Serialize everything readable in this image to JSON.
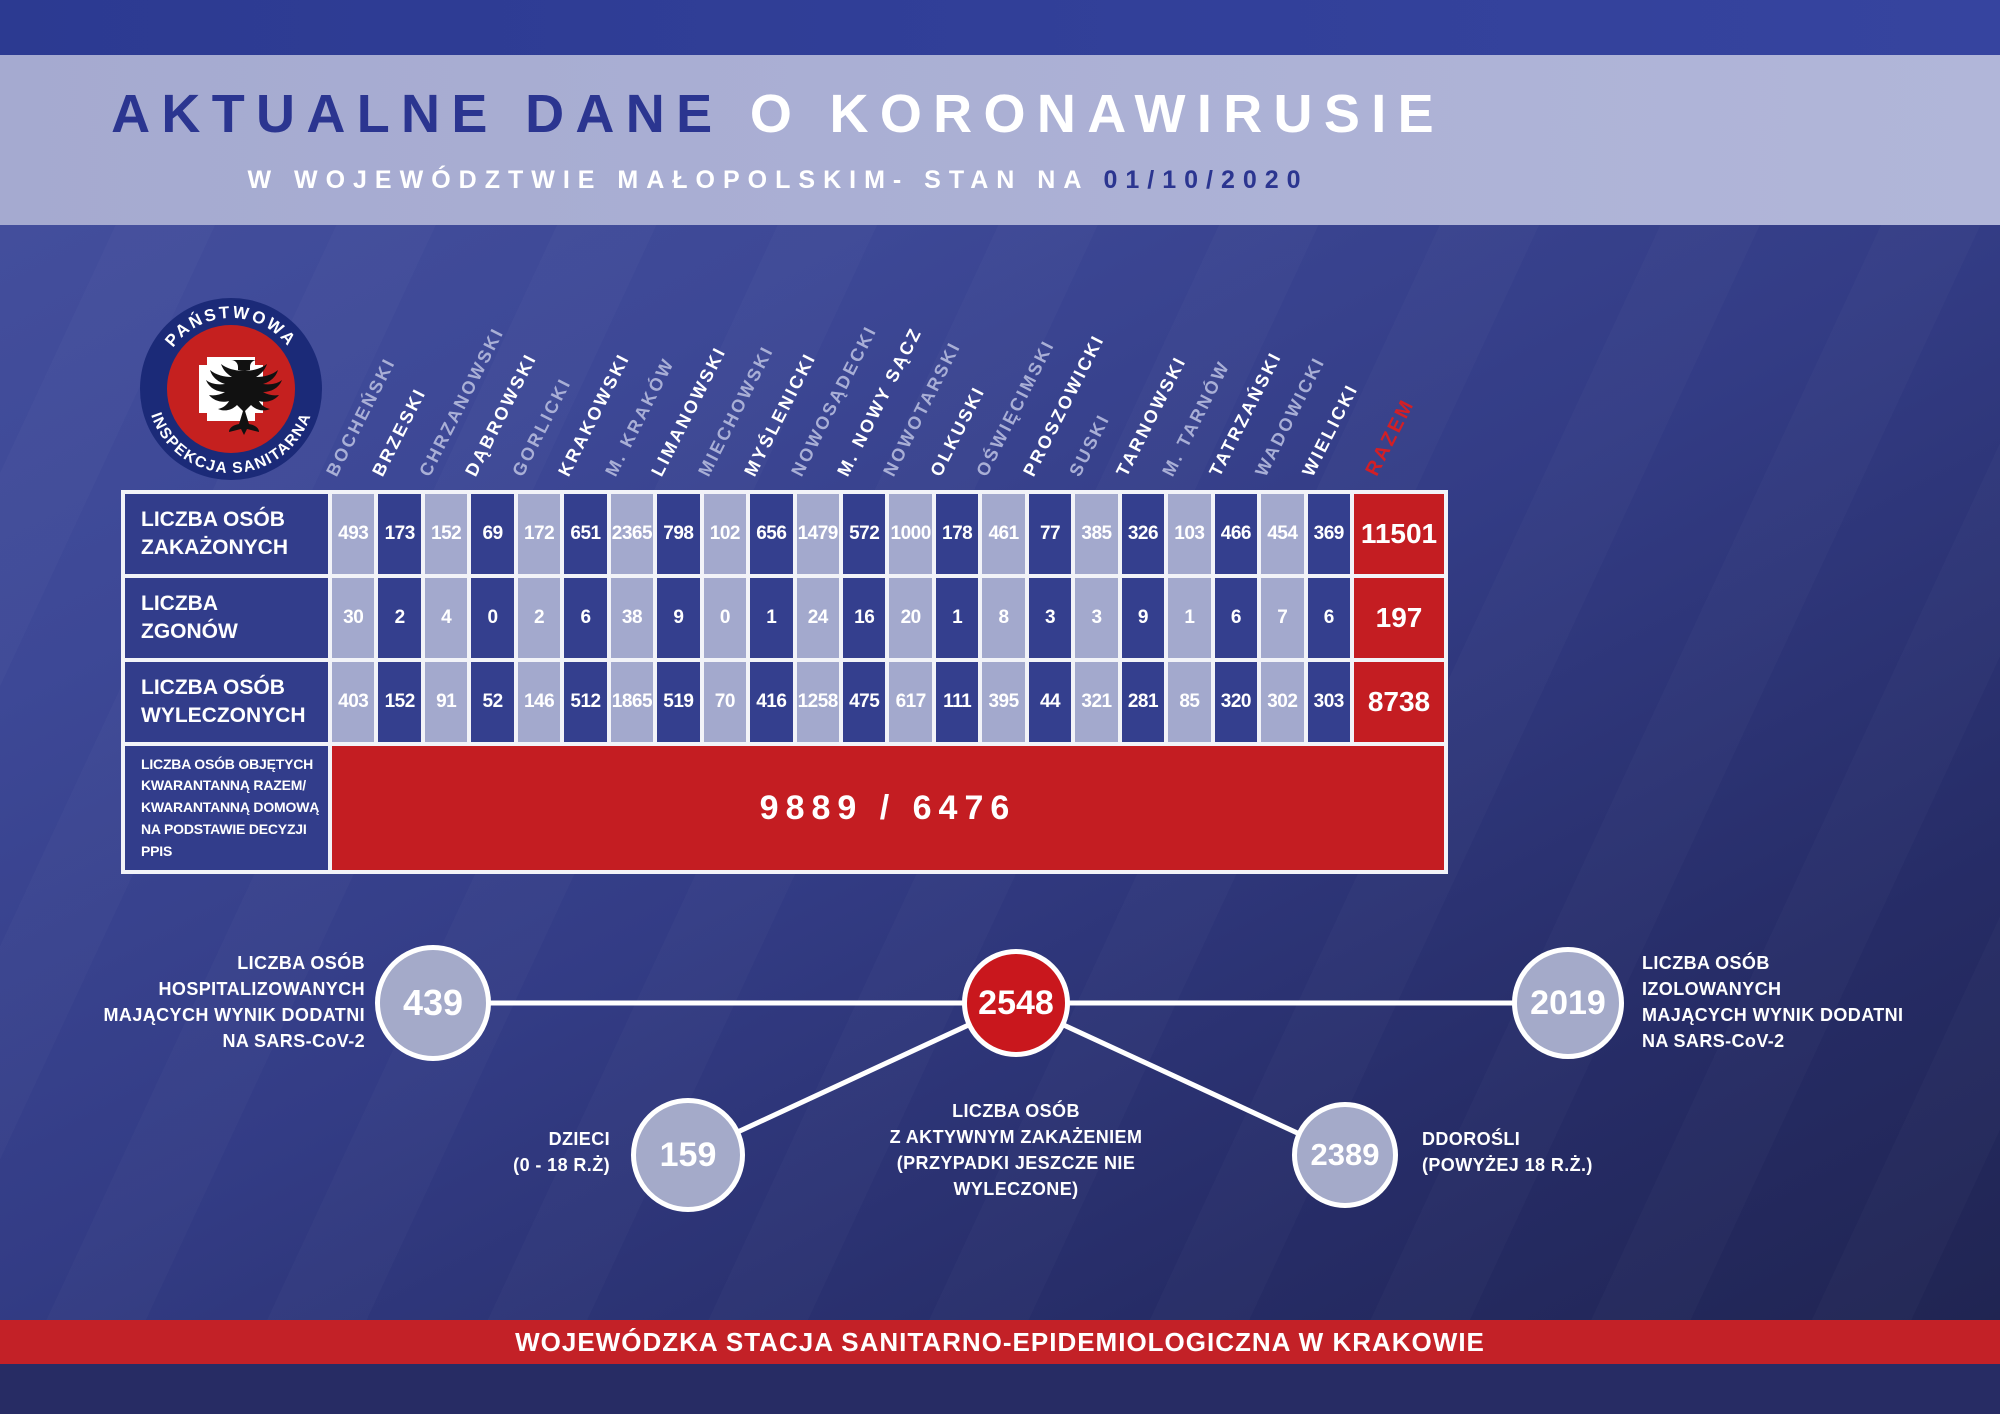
{
  "header": {
    "title_dark": "AKTUALNE DANE ",
    "title_light": "O KORONAWIRUSIE",
    "subtitle": "W WOJEWÓDZTWIE MAŁOPOLSKIM- STAN NA ",
    "date": "01/10/2020"
  },
  "logo": {
    "text_top": "PAŃSTWOWA",
    "text_bottom": "INSPEKCJA SANITARNA"
  },
  "colors": {
    "accent_red": "#c41d22",
    "navy_title": "#2b3590",
    "lavender": "#a5aad0",
    "cell_dark": "#343f8e",
    "background_top": "#46519f",
    "background_bottom": "#1f234e"
  },
  "chart_data": {
    "type": "table",
    "title": "AKTUALNE DANE O KORONAWIRUSIE W WOJEWÓDZTWIE MAŁOPOLSKIM - STAN NA 01/10/2020",
    "columns": [
      "BOCHEŃSKI",
      "BRZESKI",
      "CHRZANOWSKI",
      "DĄBROWSKI",
      "GORLICKI",
      "KRAKOWSKI",
      "M. KRAKÓW",
      "LIMANOWSKI",
      "MIECHOWSKI",
      "MYŚLENICKI",
      "NOWOSĄDECKI",
      "M. NOWY SĄCZ",
      "NOWOTARSKI",
      "OLKUSKI",
      "OŚWIĘCIMSKI",
      "PROSZOWICKI",
      "SUSKI",
      "TARNOWSKI",
      "M. TARNÓW",
      "TATRZAŃSKI",
      "WADOWICKI",
      "WIELICKI"
    ],
    "total_column": "RAZEM",
    "rows": [
      {
        "label": "LICZBA OSÓB\nZAKAŻONYCH",
        "values": [
          493,
          173,
          152,
          69,
          172,
          651,
          2365,
          798,
          102,
          656,
          1479,
          572,
          1000,
          178,
          461,
          77,
          385,
          326,
          103,
          466,
          454,
          369
        ],
        "total": 11501
      },
      {
        "label": "LICZBA\nZGONÓW",
        "values": [
          30,
          2,
          4,
          0,
          2,
          6,
          38,
          9,
          0,
          1,
          24,
          16,
          20,
          1,
          8,
          3,
          3,
          9,
          1,
          6,
          7,
          6
        ],
        "total": 197
      },
      {
        "label": "LICZBA OSÓB\nWYLECZONYCH",
        "values": [
          403,
          152,
          91,
          52,
          146,
          512,
          1865,
          519,
          70,
          416,
          1258,
          475,
          617,
          111,
          395,
          44,
          321,
          281,
          85,
          320,
          302,
          303
        ],
        "total": 8738
      }
    ],
    "quarantine_row": {
      "label": "LICZBA OSÓB OBJĘTYCH\nKWARANTANNĄ RAZEM/\nKWARANTANNĄ DOMOWĄ\nNA PODSTAWIE DECYZJI PPIS",
      "value": "9889 / 6476"
    },
    "bubbles": {
      "hospitalized": {
        "value": "439",
        "label": "LICZBA OSÓB\nHOSPITALIZOWANYCH\nMAJĄCYCH WYNIK DODATNI\nNA SARS-CoV-2"
      },
      "active": {
        "value": "2548",
        "label": "LICZBA OSÓB\nZ AKTYWNYM ZAKAŻENIEM\n(PRZYPADKI JESZCZE NIE\nWYLECZONE)"
      },
      "isolated": {
        "value": "2019",
        "label": "LICZBA OSÓB\nIZOLOWANYCH\nMAJĄCYCH WYNIK DODATNI\nNA SARS-CoV-2"
      },
      "children": {
        "value": "159",
        "label": "DZIECI\n(0 - 18 R.Ż)"
      },
      "adults": {
        "value": "2389",
        "label": "DDOROŚLI\n(POWYŻEJ 18 R.Ż.)"
      }
    }
  },
  "footer": {
    "text": "WOJEWÓDZKA STACJA SANITARNO-EPIDEMIOLOGICZNA W KRAKOWIE"
  }
}
